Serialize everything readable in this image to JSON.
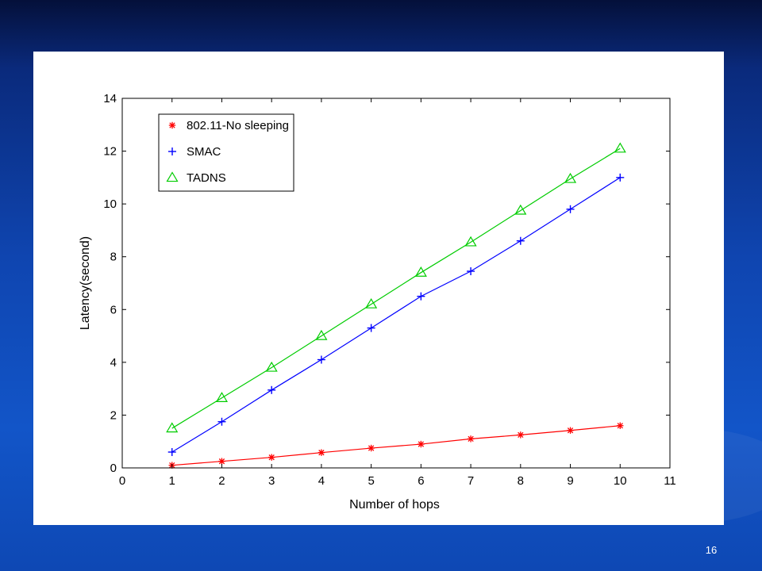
{
  "slide": {
    "page_number": "16"
  },
  "chart_data": {
    "type": "line",
    "title": "",
    "xlabel": "Number of hops",
    "ylabel": "Latency(second)",
    "xlim": [
      0,
      11
    ],
    "ylim": [
      0,
      14
    ],
    "xticks": [
      0,
      1,
      2,
      3,
      4,
      5,
      6,
      7,
      8,
      9,
      10,
      11
    ],
    "yticks": [
      0,
      2,
      4,
      6,
      8,
      10,
      12,
      14
    ],
    "grid": false,
    "legend_position": "top-left",
    "x": [
      1,
      2,
      3,
      4,
      5,
      6,
      7,
      8,
      9,
      10
    ],
    "series": [
      {
        "name": "802.11-No sleeping",
        "color": "#ff0000",
        "marker": "asterisk",
        "values": [
          0.1,
          0.25,
          0.4,
          0.58,
          0.75,
          0.9,
          1.1,
          1.25,
          1.42,
          1.6
        ]
      },
      {
        "name": "SMAC",
        "color": "#0000ff",
        "marker": "plus",
        "values": [
          0.6,
          1.75,
          2.95,
          4.1,
          5.3,
          6.5,
          7.45,
          8.6,
          9.8,
          11.0
        ]
      },
      {
        "name": "TADNS",
        "color": "#00cc00",
        "marker": "triangle",
        "values": [
          1.5,
          2.65,
          3.8,
          5.0,
          6.2,
          7.4,
          8.55,
          9.75,
          10.95,
          12.1
        ]
      }
    ]
  }
}
